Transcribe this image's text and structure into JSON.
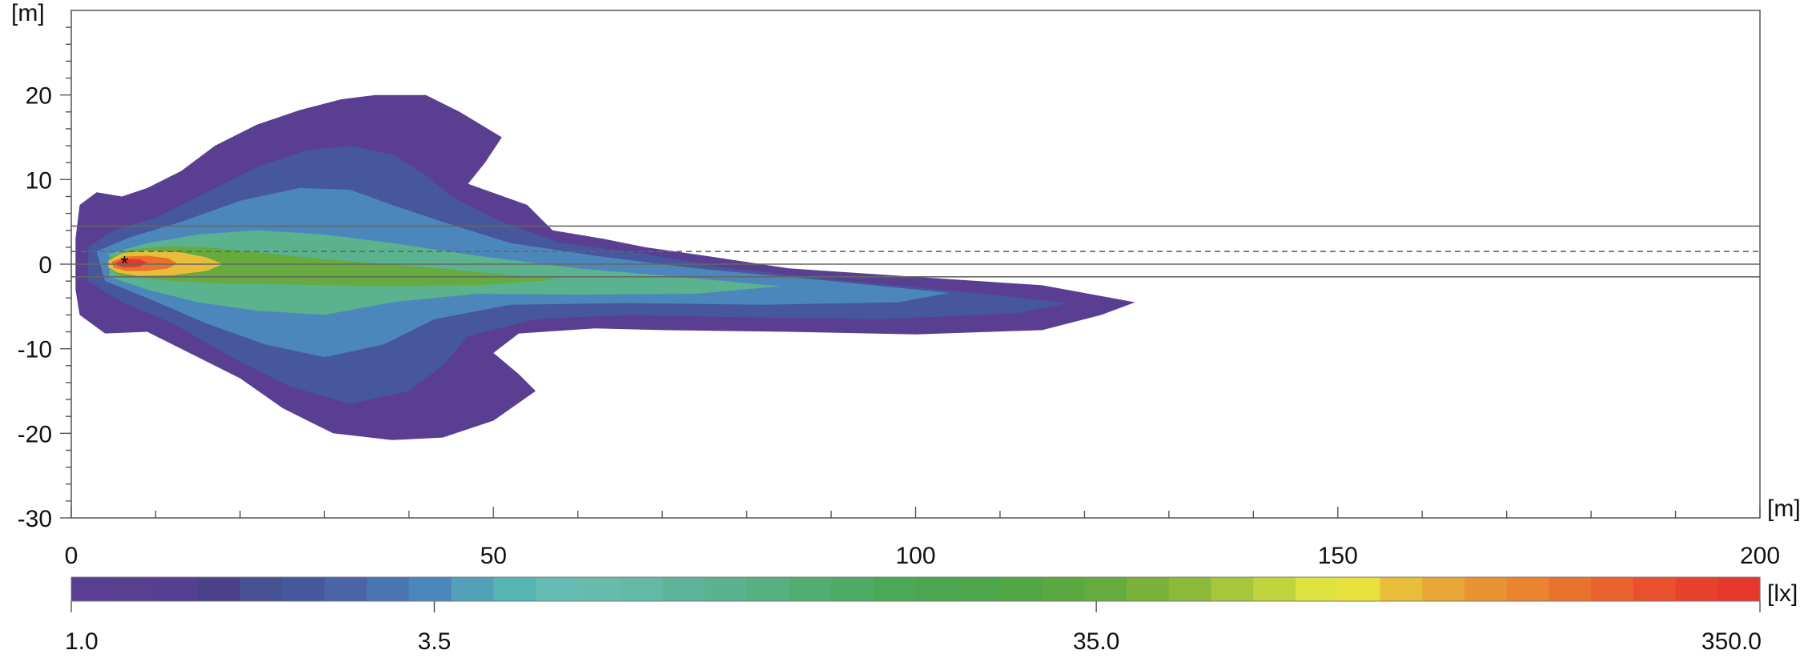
{
  "chart_data": {
    "type": "heatmap",
    "title": "",
    "x_unit_label": "[m]",
    "y_unit_label": "[m]",
    "xlim": [
      0,
      200
    ],
    "ylim": [
      -30,
      30
    ],
    "x_ticks": [
      0,
      50,
      100,
      150,
      200
    ],
    "y_ticks": [
      20,
      10,
      0,
      -10,
      -20,
      -30
    ],
    "source_marker": {
      "x": 6.3,
      "y": 0.2,
      "symbol": "*"
    },
    "reference_lines": [
      {
        "y": 4.5,
        "style": "solid"
      },
      {
        "y": 1.5,
        "style": "dashed"
      },
      {
        "y": 0,
        "style": "solid"
      },
      {
        "y": -1.5,
        "style": "solid"
      }
    ],
    "iso_contours_lx": [
      {
        "level": 1.0,
        "points": [
          [
            0.5,
            3
          ],
          [
            1,
            7
          ],
          [
            3,
            8.5
          ],
          [
            6,
            8
          ],
          [
            9,
            9
          ],
          [
            13,
            11
          ],
          [
            17,
            14
          ],
          [
            22,
            16.5
          ],
          [
            27,
            18.2
          ],
          [
            32,
            19.5
          ],
          [
            36,
            20
          ],
          [
            42,
            20
          ],
          [
            46,
            18
          ],
          [
            51,
            15
          ],
          [
            49,
            12
          ],
          [
            47,
            9.5
          ],
          [
            54,
            7
          ],
          [
            57,
            4
          ],
          [
            63,
            3
          ],
          [
            68,
            2
          ],
          [
            75,
            1
          ],
          [
            85,
            -0.5
          ],
          [
            100,
            -1.5
          ],
          [
            115,
            -2.5
          ],
          [
            126,
            -4.5
          ],
          [
            122,
            -6
          ],
          [
            115,
            -7.8
          ],
          [
            100,
            -8.3
          ],
          [
            85,
            -8
          ],
          [
            70,
            -7.8
          ],
          [
            62,
            -7.6
          ],
          [
            53,
            -8.2
          ],
          [
            50,
            -10.5
          ],
          [
            53,
            -13
          ],
          [
            55,
            -15
          ],
          [
            50,
            -18.5
          ],
          [
            44,
            -20.5
          ],
          [
            38,
            -20.8
          ],
          [
            31,
            -20
          ],
          [
            25,
            -17
          ],
          [
            20,
            -13.5
          ],
          [
            14,
            -10.5
          ],
          [
            9,
            -8
          ],
          [
            4,
            -8.2
          ],
          [
            1,
            -6
          ],
          [
            0.5,
            -3
          ]
        ]
      },
      {
        "level": 2.0,
        "points": [
          [
            2,
            2
          ],
          [
            5,
            4
          ],
          [
            10,
            5.5
          ],
          [
            16,
            8.5
          ],
          [
            22,
            11.5
          ],
          [
            28,
            13.5
          ],
          [
            33,
            14
          ],
          [
            38,
            13
          ],
          [
            42,
            10.5
          ],
          [
            45,
            8
          ],
          [
            51,
            5
          ],
          [
            58,
            2.5
          ],
          [
            68,
            1.2
          ],
          [
            78,
            -0.5
          ],
          [
            92,
            -2
          ],
          [
            108,
            -3.5
          ],
          [
            118,
            -4.6
          ],
          [
            112,
            -5.8
          ],
          [
            96,
            -6.5
          ],
          [
            80,
            -6.3
          ],
          [
            66,
            -6
          ],
          [
            55,
            -6.5
          ],
          [
            47,
            -8.5
          ],
          [
            44,
            -12
          ],
          [
            40,
            -15
          ],
          [
            33,
            -16.5
          ],
          [
            26,
            -14.5
          ],
          [
            19,
            -11
          ],
          [
            12,
            -7
          ],
          [
            6,
            -4.5
          ],
          [
            2,
            -2
          ]
        ]
      },
      {
        "level": 3.5,
        "points": [
          [
            3,
            1.5
          ],
          [
            7,
            3.2
          ],
          [
            13,
            5
          ],
          [
            20,
            7.5
          ],
          [
            27,
            9
          ],
          [
            33,
            8.8
          ],
          [
            38,
            7
          ],
          [
            44,
            5
          ],
          [
            52,
            2.5
          ],
          [
            62,
            1
          ],
          [
            74,
            -0.5
          ],
          [
            88,
            -1.8
          ],
          [
            104,
            -3.4
          ],
          [
            98,
            -4.5
          ],
          [
            82,
            -4.8
          ],
          [
            66,
            -4.6
          ],
          [
            52,
            -4.8
          ],
          [
            43,
            -6.5
          ],
          [
            37,
            -9.5
          ],
          [
            30,
            -11
          ],
          [
            23,
            -9.5
          ],
          [
            16,
            -7
          ],
          [
            9,
            -4
          ],
          [
            4,
            -2
          ]
        ]
      },
      {
        "level": 10.0,
        "points": [
          [
            4.5,
            1.2
          ],
          [
            9,
            2.5
          ],
          [
            15,
            3.5
          ],
          [
            22,
            4
          ],
          [
            30,
            3.5
          ],
          [
            38,
            2.5
          ],
          [
            48,
            1
          ],
          [
            60,
            -0.5
          ],
          [
            72,
            -1.5
          ],
          [
            84,
            -2.6
          ],
          [
            74,
            -3.5
          ],
          [
            60,
            -3.6
          ],
          [
            48,
            -3.5
          ],
          [
            38,
            -4.5
          ],
          [
            30,
            -6
          ],
          [
            22,
            -5.5
          ],
          [
            15,
            -4.5
          ],
          [
            9,
            -3
          ],
          [
            4.5,
            -1.5
          ]
        ]
      },
      {
        "level": 35.0,
        "points": [
          [
            4.5,
            0.8
          ],
          [
            7,
            1.7
          ],
          [
            11,
            2.1
          ],
          [
            16,
            2
          ],
          [
            22,
            1.4
          ],
          [
            30,
            0.6
          ],
          [
            40,
            -0.2
          ],
          [
            50,
            -1.1
          ],
          [
            58,
            -1.8
          ],
          [
            48,
            -2.5
          ],
          [
            36,
            -2.6
          ],
          [
            26,
            -2.4
          ],
          [
            18,
            -2.3
          ],
          [
            11,
            -1.9
          ],
          [
            6,
            -1.4
          ],
          [
            4.5,
            -0.6
          ]
        ]
      },
      {
        "level": 100.0,
        "points": [
          [
            4.4,
            0.4
          ],
          [
            6,
            1.3
          ],
          [
            9,
            1.6
          ],
          [
            13,
            1.4
          ],
          [
            16,
            0.8
          ],
          [
            18,
            0
          ],
          [
            16,
            -0.8
          ],
          [
            12,
            -1.3
          ],
          [
            8,
            -1.4
          ],
          [
            5.5,
            -1.0
          ],
          [
            4.4,
            -0.4
          ]
        ]
      },
      {
        "level": 200.0,
        "points": [
          [
            4.8,
            0.3
          ],
          [
            6.5,
            0.9
          ],
          [
            9,
            1.0
          ],
          [
            11.5,
            0.7
          ],
          [
            12.5,
            0.1
          ],
          [
            11.5,
            -0.5
          ],
          [
            9,
            -0.8
          ],
          [
            6.5,
            -0.8
          ],
          [
            5,
            -0.4
          ]
        ]
      },
      {
        "level": 350.0,
        "points": [
          [
            5.3,
            0.2
          ],
          [
            6.3,
            0.6
          ],
          [
            8,
            0.6
          ],
          [
            9,
            0.2
          ],
          [
            8,
            -0.3
          ],
          [
            6.3,
            -0.4
          ],
          [
            5.4,
            -0.1
          ]
        ]
      }
    ],
    "colorbar": {
      "unit_label": "[lx]",
      "range_lx": [
        1.0,
        350.0
      ],
      "tick_labels": [
        "1.0",
        "3.5",
        "35.0",
        "350.0"
      ],
      "tick_values_lx": [
        1.0,
        3.5,
        35.0,
        350.0
      ],
      "colors": [
        "#5a3e92",
        "#59408f",
        "#543f90",
        "#4b4189",
        "#465291",
        "#46579c",
        "#4b63a8",
        "#4976b3",
        "#4c87bb",
        "#53a1b8",
        "#56b5b4",
        "#67bdb3",
        "#67bbad",
        "#64b9a6",
        "#5eb49b",
        "#5ab28f",
        "#57b082",
        "#52ad72",
        "#4eab63",
        "#4aa857",
        "#4aa64f",
        "#4da64d",
        "#52a645",
        "#5ba840",
        "#66ab3d",
        "#7ab23b",
        "#8bba3a",
        "#a6c73c",
        "#c0d43d",
        "#dde23e",
        "#e8e13d",
        "#e8bd3a",
        "#e8a638",
        "#e99433",
        "#ea8431",
        "#ea722f",
        "#ea622e",
        "#e9502d",
        "#e8422c",
        "#e6382d"
      ]
    }
  }
}
